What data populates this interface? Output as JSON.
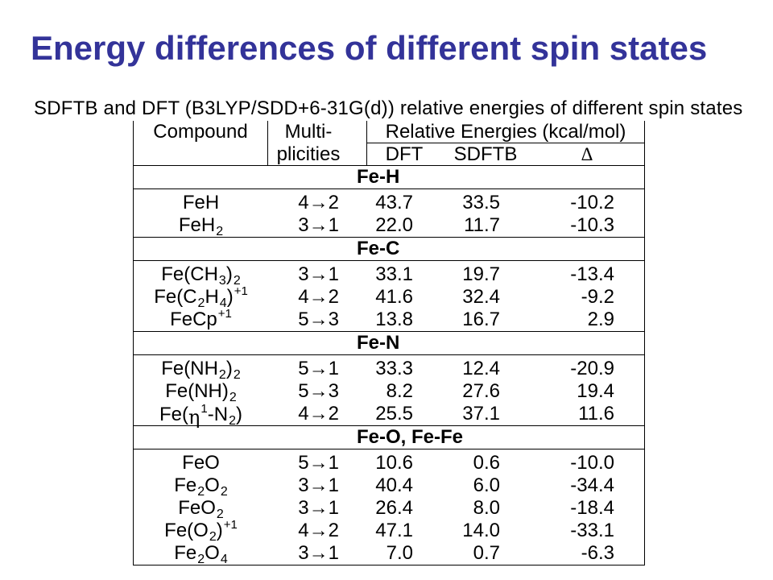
{
  "slide": {
    "title": "Energy differences of different spin states",
    "title_color": "#333399",
    "caption": "SDFTB and DFT (B3LYP/SDD+6-31G(d)) relative energies of different spin states"
  },
  "table": {
    "headers": {
      "compound": "Compound",
      "multi_line1": "Multi-",
      "multi_line2": "plicities",
      "energies": "Relative Energies (kcal/mol)",
      "dft": "DFT",
      "sdftb": "SDFTB",
      "delta": "Δ"
    },
    "sections": [
      {
        "name": "Fe-H",
        "rows": [
          {
            "compound": [
              {
                "text": "FeH"
              }
            ],
            "multiplicity": "4→2",
            "dft": "43.7",
            "sdftb": "33.5",
            "delta": "-10.2"
          },
          {
            "compound": [
              {
                "text": "FeH"
              },
              {
                "text": "2",
                "sub": true
              }
            ],
            "multiplicity": "3→1",
            "dft": "22.0",
            "sdftb": "11.7",
            "delta": "-10.3"
          }
        ]
      },
      {
        "name": "Fe-C",
        "rows": [
          {
            "compound": [
              {
                "text": "Fe(CH"
              },
              {
                "text": "3",
                "sub": true
              },
              {
                "text": ")"
              },
              {
                "text": "2",
                "sub": true
              }
            ],
            "multiplicity": "3→1",
            "dft": "33.1",
            "sdftb": "19.7",
            "delta": "-13.4"
          },
          {
            "compound": [
              {
                "text": "Fe(C"
              },
              {
                "text": "2",
                "sub": true
              },
              {
                "text": "H"
              },
              {
                "text": "4",
                "sub": true
              },
              {
                "text": ")"
              },
              {
                "text": "+1",
                "sup": true
              }
            ],
            "multiplicity": "4→2",
            "dft": "41.6",
            "sdftb": "32.4",
            "delta": "-9.2"
          },
          {
            "compound": [
              {
                "text": "FeCp"
              },
              {
                "text": "+1",
                "sup": true
              }
            ],
            "multiplicity": "5→3",
            "dft": "13.8",
            "sdftb": "16.7",
            "delta": "2.9"
          }
        ]
      },
      {
        "name": "Fe-N",
        "rows": [
          {
            "compound": [
              {
                "text": "Fe(NH"
              },
              {
                "text": "2",
                "sub": true
              },
              {
                "text": ")"
              },
              {
                "text": "2",
                "sub": true
              }
            ],
            "multiplicity": "5→1",
            "dft": "33.3",
            "sdftb": "12.4",
            "delta": "-20.9"
          },
          {
            "compound": [
              {
                "text": "Fe(NH)"
              },
              {
                "text": "2",
                "sub": true
              }
            ],
            "multiplicity": "5→3",
            "dft": "8.2",
            "sdftb": "27.6",
            "delta": "19.4"
          },
          {
            "compound": [
              {
                "text": "Fe("
              },
              {
                "text": "η",
                "greek": true
              },
              {
                "text": "1",
                "sup": true
              },
              {
                "text": "-N"
              },
              {
                "text": "2",
                "sub": true
              },
              {
                "text": ")"
              }
            ],
            "multiplicity": "4→2",
            "dft": "25.5",
            "sdftb": "37.1",
            "delta": "11.6"
          }
        ]
      },
      {
        "name": "Fe-O, Fe-Fe",
        "rows": [
          {
            "compound": [
              {
                "text": "FeO"
              }
            ],
            "multiplicity": "5→1",
            "dft": "10.6",
            "sdftb": "0.6",
            "delta": "-10.0"
          },
          {
            "compound": [
              {
                "text": "Fe"
              },
              {
                "text": "2",
                "sub": true
              },
              {
                "text": "O"
              },
              {
                "text": "2",
                "sub": true
              }
            ],
            "multiplicity": "3→1",
            "dft": "40.4",
            "sdftb": "6.0",
            "delta": "-34.4"
          },
          {
            "compound": [
              {
                "text": "FeO"
              },
              {
                "text": "2",
                "sub": true
              }
            ],
            "multiplicity": "3→1",
            "dft": "26.4",
            "sdftb": "8.0",
            "delta": "-18.4"
          },
          {
            "compound": [
              {
                "text": "Fe(O"
              },
              {
                "text": "2",
                "sub": true
              },
              {
                "text": ")"
              },
              {
                "text": "+1",
                "sup": true
              }
            ],
            "multiplicity": "4→2",
            "dft": "47.1",
            "sdftb": "14.0",
            "delta": "-33.1"
          },
          {
            "compound": [
              {
                "text": "Fe"
              },
              {
                "text": "2",
                "sub": true
              },
              {
                "text": "O"
              },
              {
                "text": "4",
                "sub": true
              }
            ],
            "multiplicity": "3→1",
            "dft": "7.0",
            "sdftb": "0.7",
            "delta": "-6.3"
          }
        ]
      }
    ]
  }
}
